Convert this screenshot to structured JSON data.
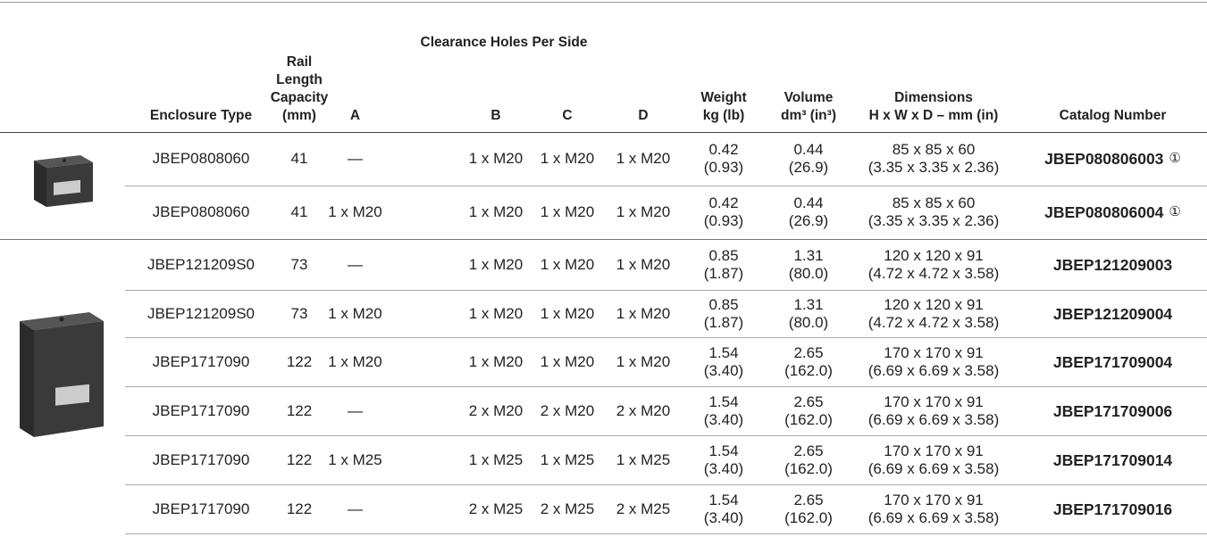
{
  "table": {
    "header": {
      "group": "Clearance Holes Per Side",
      "columns": [
        [
          "Enclosure Type"
        ],
        [
          "Rail",
          "Length",
          "Capacity",
          "(mm)"
        ],
        [
          "A"
        ],
        [
          "B"
        ],
        [
          "C"
        ],
        [
          "D"
        ],
        [
          "Weight",
          "kg (lb)"
        ],
        [
          "Volume",
          "dm³ (in³)"
        ],
        [
          "Dimensions",
          "H x W x D – mm (in)"
        ],
        [
          "Catalog Number"
        ]
      ]
    },
    "rows": [
      {
        "cells": [
          "JBEP0808060",
          "41",
          "—",
          "1 x M20",
          "1 x M20",
          "1 x M20",
          [
            "0.42",
            "(0.93)"
          ],
          [
            "0.44",
            "(26.9)"
          ],
          [
            "85 x 85 x 60",
            "(3.35 x 3.35 x 2.36)"
          ],
          "JBEP080806003"
        ],
        "note": "①"
      },
      {
        "cells": [
          "JBEP0808060",
          "41",
          "1 x M20",
          "1 x M20",
          "1 x M20",
          "1 x M20",
          [
            "0.42",
            "(0.93)"
          ],
          [
            "0.44",
            "(26.9)"
          ],
          [
            "85 x 85 x 60",
            "(3.35 x 3.35 x 2.36)"
          ],
          "JBEP080806004"
        ],
        "note": "①"
      },
      {
        "cells": [
          "JBEP121209S0",
          "73",
          "—",
          "1 x M20",
          "1 x M20",
          "1 x M20",
          [
            "0.85",
            "(1.87)"
          ],
          [
            "1.31",
            "(80.0)"
          ],
          [
            "120 x 120 x 91",
            "(4.72 x 4.72 x 3.58)"
          ],
          "JBEP121209003"
        ]
      },
      {
        "cells": [
          "JBEP121209S0",
          "73",
          "1 x M20",
          "1 x M20",
          "1 x M20",
          "1 x M20",
          [
            "0.85",
            "(1.87)"
          ],
          [
            "1.31",
            "(80.0)"
          ],
          [
            "120 x 120 x 91",
            "(4.72 x 4.72 x 3.58)"
          ],
          "JBEP121209004"
        ]
      },
      {
        "cells": [
          "JBEP1717090",
          "122",
          "1 x M20",
          "1 x M20",
          "1 x M20",
          "1 x M20",
          [
            "1.54",
            "(3.40)"
          ],
          [
            "2.65",
            "(162.0)"
          ],
          [
            "170 x 170 x 91",
            "(6.69 x 6.69 x 3.58)"
          ],
          "JBEP171709004"
        ]
      },
      {
        "cells": [
          "JBEP1717090",
          "122",
          "—",
          "2 x M20",
          "2 x M20",
          "2 x M20",
          [
            "1.54",
            "(3.40)"
          ],
          [
            "2.65",
            "(162.0)"
          ],
          [
            "170 x 170 x 91",
            "(6.69 x 6.69 x 3.58)"
          ],
          "JBEP171709006"
        ]
      },
      {
        "cells": [
          "JBEP1717090",
          "122",
          "1 x M25",
          "1 x M25",
          "1 x M25",
          "1 x M25",
          [
            "1.54",
            "(3.40)"
          ],
          [
            "2.65",
            "(162.0)"
          ],
          [
            "170 x 170 x 91",
            "(6.69 x 6.69 x 3.58)"
          ],
          "JBEP171709014"
        ]
      },
      {
        "cells": [
          "JBEP1717090",
          "122",
          "—",
          "2 x M25",
          "2 x M25",
          "2 x M25",
          [
            "1.54",
            "(3.40)"
          ],
          [
            "2.65",
            "(162.0)"
          ],
          [
            "170 x 170 x 91",
            "(6.69 x 6.69 x 3.58)"
          ],
          "JBEP171709016"
        ]
      }
    ]
  }
}
